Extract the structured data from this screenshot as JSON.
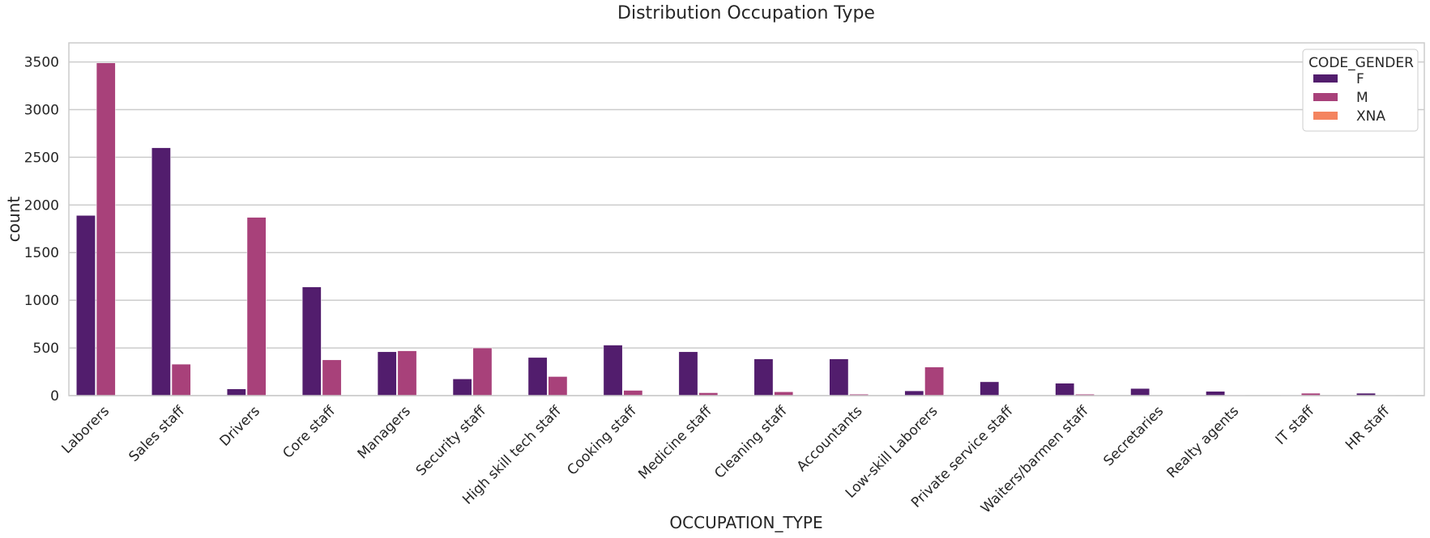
{
  "chart_data": {
    "type": "bar",
    "title": "Distribution Occupation Type",
    "xlabel": "OCCUPATION_TYPE",
    "ylabel": "count",
    "ylim": [
      0,
      3700
    ],
    "yticks": [
      0,
      500,
      1000,
      1500,
      2000,
      2500,
      3000,
      3500
    ],
    "grid": true,
    "legend": {
      "title": "CODE_GENDER",
      "placement": "top-right"
    },
    "categories": [
      "Laborers",
      "Sales staff",
      "Drivers",
      "Core staff",
      "Managers",
      "Security staff",
      "High skill tech staff",
      "Cooking staff",
      "Medicine staff",
      "Cleaning staff",
      "Accountants",
      "Low-skill Laborers",
      "Private service staff",
      "Waiters/barmen staff",
      "Secretaries",
      "Realty agents",
      "IT staff",
      "HR staff"
    ],
    "series": [
      {
        "name": "F",
        "color": "#521d6d",
        "values": [
          1890,
          2600,
          70,
          1140,
          460,
          175,
          400,
          530,
          460,
          385,
          385,
          50,
          145,
          130,
          75,
          45,
          5,
          25
        ]
      },
      {
        "name": "M",
        "color": "#a8417a",
        "values": [
          3490,
          330,
          1870,
          375,
          470,
          500,
          200,
          55,
          30,
          40,
          15,
          300,
          5,
          15,
          3,
          5,
          25,
          3
        ]
      },
      {
        "name": "XNA",
        "color": "#f4845f",
        "values": [
          0,
          0,
          0,
          0,
          0,
          0,
          0,
          0,
          0,
          0,
          0,
          0,
          0,
          0,
          0,
          0,
          0,
          0
        ]
      }
    ]
  }
}
